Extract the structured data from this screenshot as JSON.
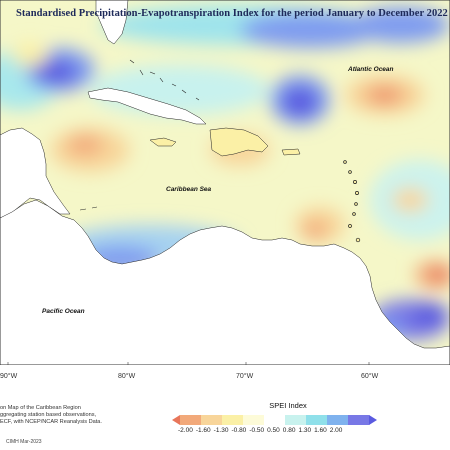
{
  "title": "Standardised Precipitation-Evapotranspiration Index for the period January to December 2022",
  "map": {
    "ocean_labels": {
      "atlantic": "Atlantic Ocean",
      "caribbean": "Caribbean Sea",
      "pacific": "Pacific Ocean"
    },
    "longitude_labels": [
      "90°W",
      "80°W",
      "70°W",
      "60°W"
    ]
  },
  "notes": {
    "line1": "on Map of the Caribbean Region",
    "line2": "ggregating station based observations,",
    "line3": "ECF, with NCEP/NCAR Reanalysis Data."
  },
  "legend": {
    "title": "SPEI Index",
    "labels": [
      "-2.00",
      "-1.60",
      "-1.30",
      "-0.80",
      "-0.50",
      "0.50",
      "0.80",
      "1.30",
      "1.60",
      "2.00"
    ],
    "colors": [
      "#e8765a",
      "#f2a97a",
      "#f8d59a",
      "#fbf0a6",
      "#fdfbd8",
      "#ffffff",
      "#c8f2ee",
      "#8fe0ea",
      "#7fb2ee",
      "#7878e6",
      "#5a5ae0"
    ]
  },
  "credit": "CIMH Mar-2023"
}
